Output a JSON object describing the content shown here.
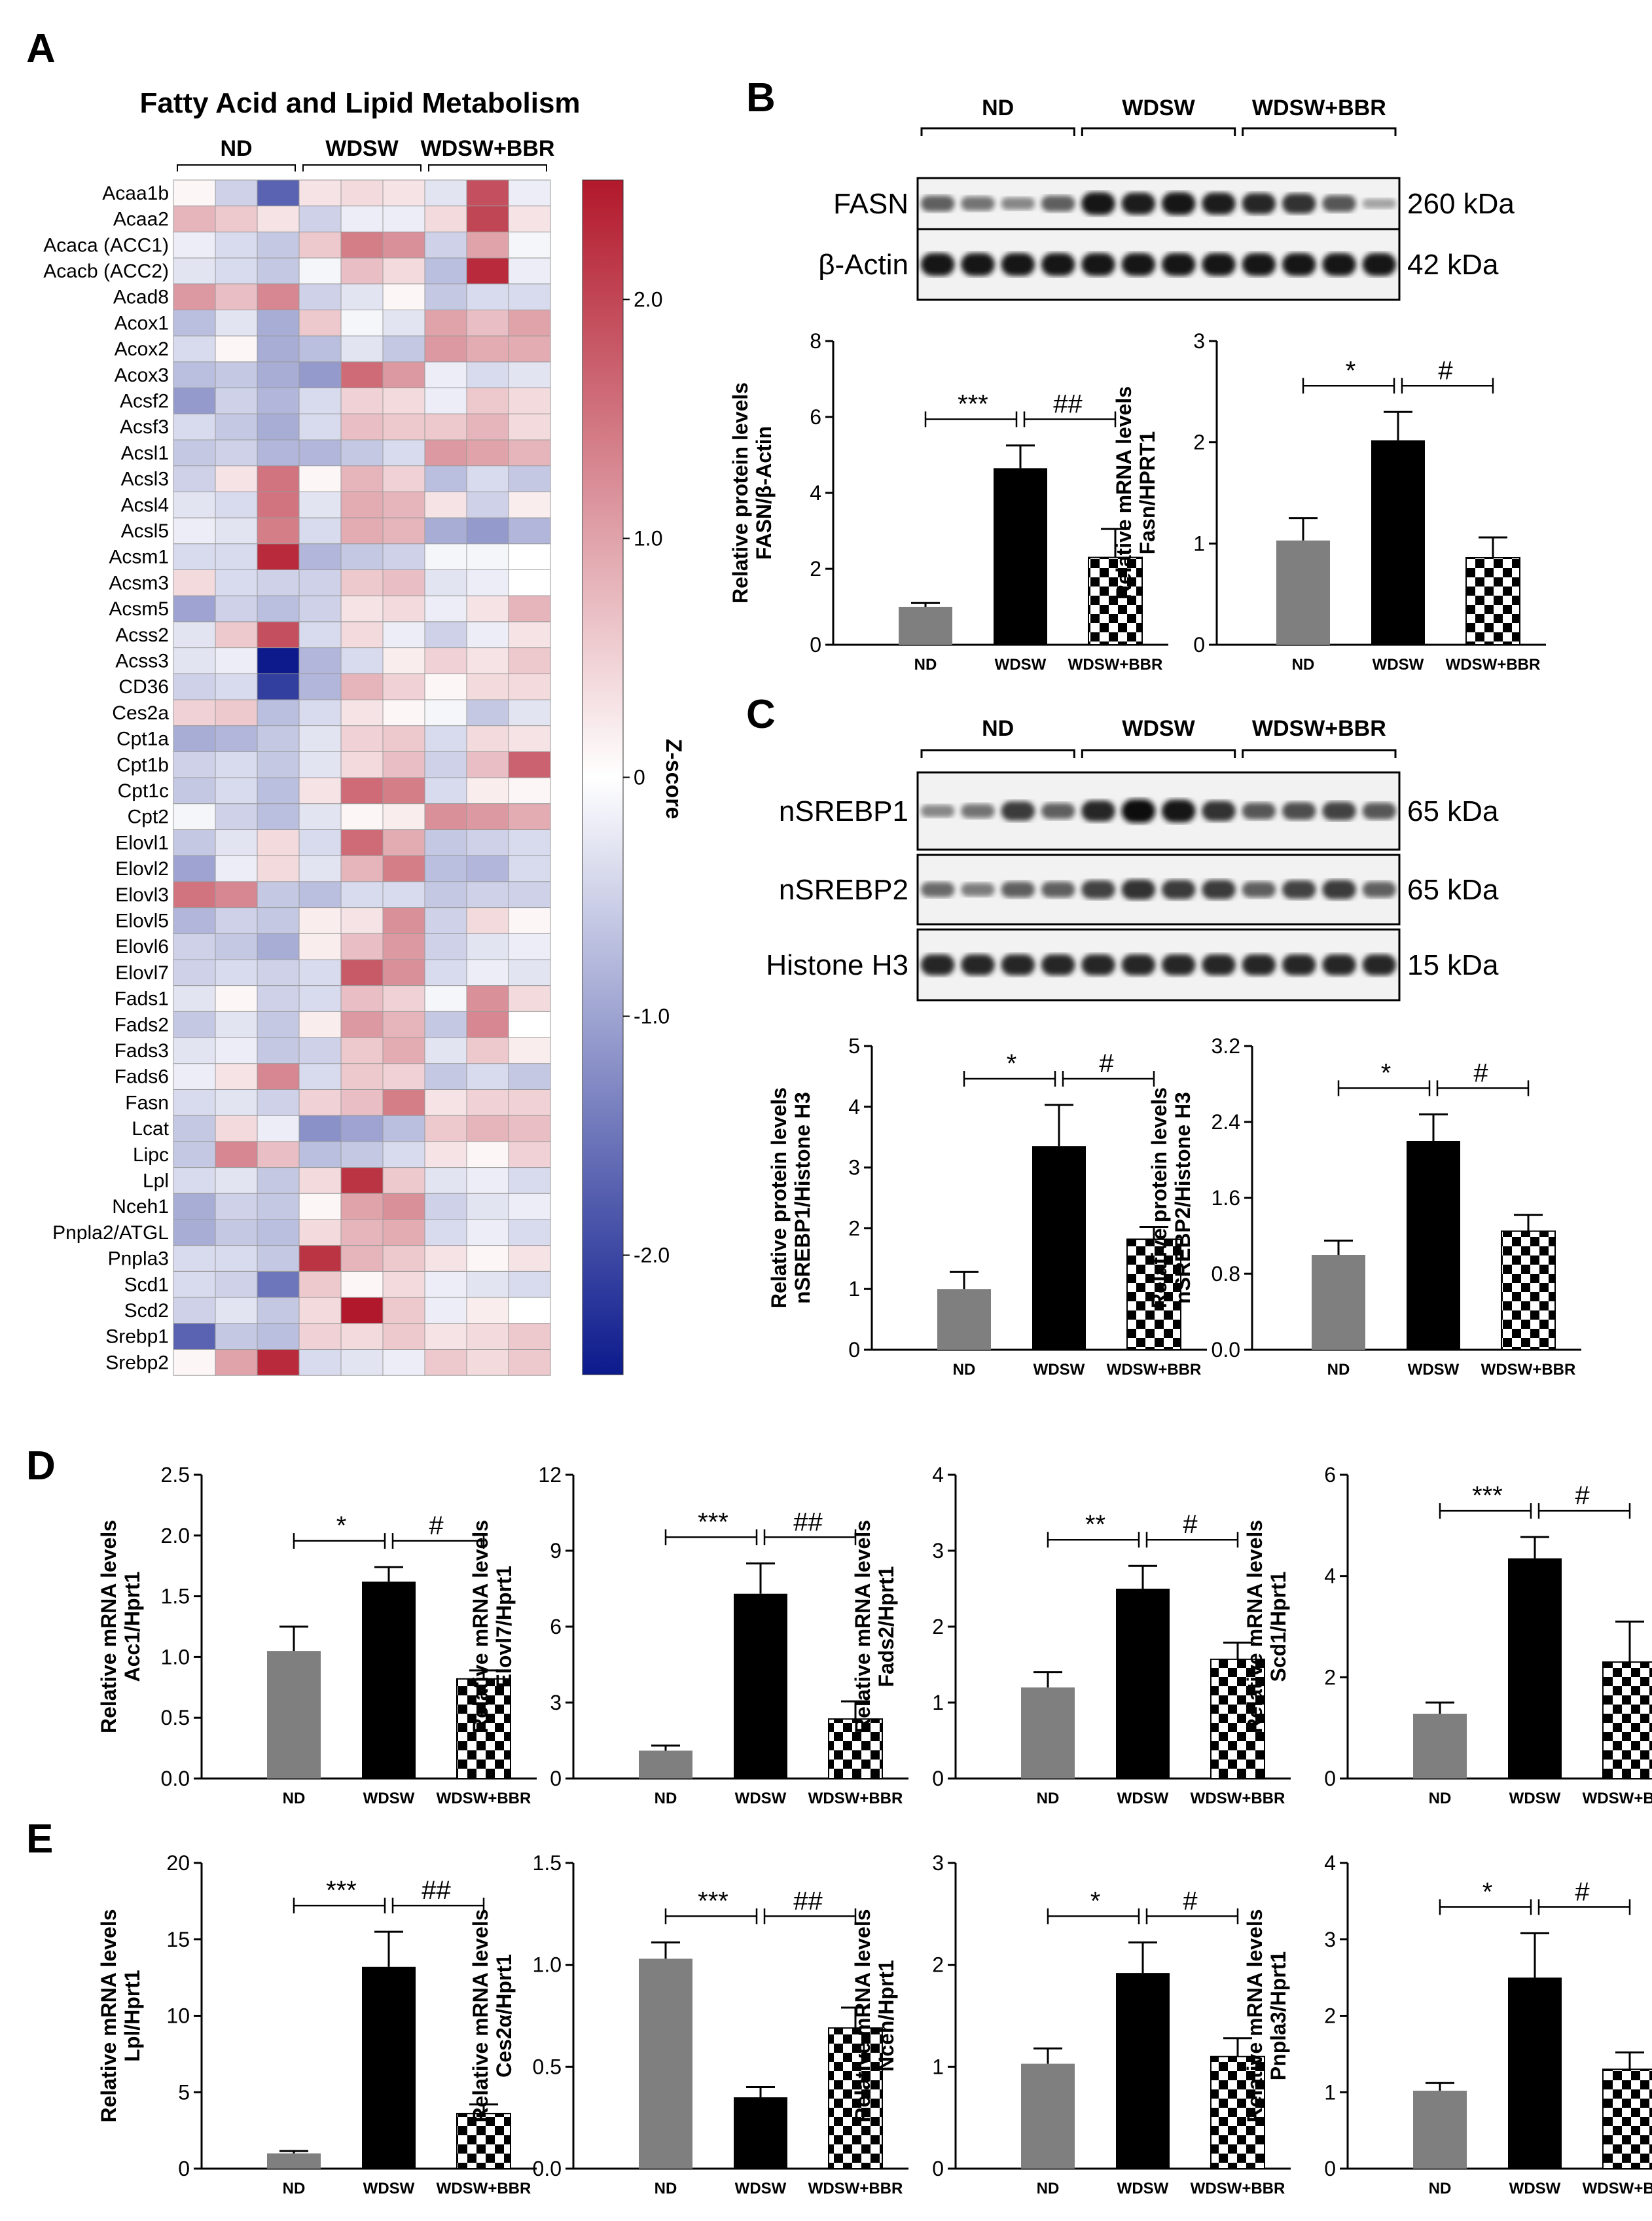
{
  "panels": {
    "A": "A",
    "B": "B",
    "C": "C",
    "D": "D",
    "E": "E"
  },
  "groups": [
    "ND",
    "WDSW",
    "WDSW+BBR"
  ],
  "heatmap": {
    "title": "Fatty Acid and Lipid Metabolism",
    "colorbar_label": "Z-score",
    "colorbar_ticks": [
      "2.0",
      "1.0",
      "0",
      "-1.0",
      "-2.0"
    ],
    "colorbar_values": [
      2.0,
      1.0,
      0,
      -1.0,
      -2.0
    ],
    "colorbar_range": [
      -2.5,
      2.5
    ],
    "colors": {
      "high": "#b2182b",
      "mid": "#ffffff",
      "low": "#0c1a8c"
    },
    "rows": [
      "Acaa1b",
      "Acaa2",
      "Acaca (ACC1)",
      "Acacb (ACC2)",
      "Acad8",
      "Acox1",
      "Acox2",
      "Acox3",
      "Acsf2",
      "Acsf3",
      "Acsl1",
      "Acsl3",
      "Acsl4",
      "Acsl5",
      "Acsm1",
      "Acsm3",
      "Acsm5",
      "Acss2",
      "Acss3",
      "CD36",
      "Ces2a",
      "Cpt1a",
      "Cpt1b",
      "Cpt1c",
      "Cpt2",
      "Elovl1",
      "Elovl2",
      "Elovl3",
      "Elovl5",
      "Elovl6",
      "Elovl7",
      "Fads1",
      "Fads2",
      "Fads3",
      "Fads6",
      "Fasn",
      "Lcat",
      "Lipc",
      "Lpl",
      "Nceh1",
      "Pnpla2/ATGL",
      "Pnpla3",
      "Scd1",
      "Scd2",
      "Srebp1",
      "Srebp2"
    ],
    "values": [
      [
        0.1,
        -0.5,
        -1.7,
        0.3,
        0.4,
        0.3,
        -0.3,
        1.9,
        -0.2
      ],
      [
        0.8,
        0.6,
        0.3,
        -0.5,
        -0.2,
        -0.2,
        0.4,
        2.0,
        0.3
      ],
      [
        -0.2,
        -0.4,
        -0.6,
        0.6,
        1.4,
        1.2,
        -0.5,
        1.0,
        -0.1
      ],
      [
        -0.3,
        -0.4,
        -0.6,
        -0.1,
        0.7,
        0.4,
        -0.7,
        2.3,
        -0.2
      ],
      [
        1.1,
        0.7,
        1.3,
        -0.5,
        -0.3,
        0.1,
        -0.6,
        -0.4,
        -0.4
      ],
      [
        -0.7,
        -0.3,
        -0.9,
        0.6,
        -0.1,
        -0.3,
        1.0,
        0.7,
        1.0
      ],
      [
        -0.4,
        0.1,
        -0.9,
        -0.7,
        -0.3,
        -0.6,
        1.1,
        0.9,
        0.9
      ],
      [
        -0.7,
        -0.6,
        -0.9,
        -1.1,
        1.6,
        1.1,
        -0.2,
        -0.4,
        -0.3
      ],
      [
        -1.1,
        -0.5,
        -0.8,
        -0.4,
        0.5,
        0.4,
        -0.2,
        0.6,
        0.4
      ],
      [
        -0.4,
        -0.6,
        -0.9,
        -0.4,
        0.7,
        0.6,
        0.6,
        0.8,
        0.4
      ],
      [
        -0.6,
        -0.5,
        -0.8,
        -0.8,
        -0.6,
        -0.4,
        1.1,
        1.0,
        0.8
      ],
      [
        -0.5,
        0.3,
        1.5,
        0.1,
        0.8,
        0.5,
        -0.7,
        -0.4,
        -0.6
      ],
      [
        -0.3,
        -0.4,
        1.5,
        -0.3,
        0.9,
        0.8,
        0.3,
        -0.5,
        0.2
      ],
      [
        -0.2,
        -0.3,
        1.4,
        -0.4,
        0.9,
        0.8,
        -0.9,
        -1.1,
        -0.8
      ],
      [
        -0.4,
        -0.4,
        2.3,
        -0.8,
        -0.6,
        -0.5,
        -0.1,
        -0.1,
        0.0
      ],
      [
        0.4,
        -0.4,
        -0.5,
        -0.5,
        0.6,
        0.7,
        -0.3,
        -0.2,
        0.0
      ],
      [
        -1.0,
        -0.5,
        -0.7,
        -0.5,
        0.3,
        0.4,
        -0.2,
        0.3,
        0.8
      ],
      [
        -0.3,
        0.6,
        1.9,
        -0.4,
        0.4,
        -0.2,
        -0.5,
        -0.2,
        0.3
      ],
      [
        -0.3,
        -0.2,
        -2.5,
        -0.8,
        -0.4,
        0.2,
        0.5,
        0.3,
        0.6
      ],
      [
        -0.5,
        -0.4,
        -2.1,
        -0.8,
        0.8,
        0.5,
        0.1,
        0.4,
        0.4
      ],
      [
        0.5,
        0.6,
        -0.7,
        -0.4,
        0.3,
        0.1,
        -0.1,
        -0.6,
        -0.3
      ],
      [
        -0.9,
        -0.8,
        -0.6,
        -0.3,
        0.5,
        0.6,
        -0.4,
        0.4,
        0.3
      ],
      [
        -0.5,
        -0.4,
        -0.6,
        -0.3,
        0.4,
        0.7,
        -0.5,
        0.7,
        1.7
      ],
      [
        -0.6,
        -0.4,
        -0.7,
        0.3,
        1.6,
        1.4,
        -0.4,
        0.2,
        0.1
      ],
      [
        -0.1,
        -0.5,
        -0.7,
        -0.3,
        0.1,
        0.2,
        1.2,
        1.1,
        0.9
      ],
      [
        -0.6,
        -0.3,
        0.4,
        -0.4,
        1.6,
        0.9,
        -0.6,
        -0.5,
        -0.4
      ],
      [
        -1.0,
        -0.2,
        0.4,
        -0.3,
        0.8,
        1.4,
        -0.7,
        -0.8,
        -0.4
      ],
      [
        1.5,
        1.3,
        -0.6,
        -0.7,
        -0.4,
        -0.4,
        -0.6,
        -0.5,
        -0.5
      ],
      [
        -0.8,
        -0.5,
        -0.6,
        0.2,
        0.3,
        1.2,
        -0.5,
        0.4,
        0.1
      ],
      [
        -0.5,
        -0.6,
        -0.9,
        0.2,
        0.7,
        1.1,
        -0.5,
        -0.3,
        -0.2
      ],
      [
        -0.5,
        -0.4,
        -0.5,
        -0.4,
        1.8,
        1.2,
        -0.4,
        -0.2,
        -0.3
      ],
      [
        -0.3,
        0.1,
        -0.5,
        -0.4,
        0.7,
        0.5,
        -0.1,
        1.2,
        0.4
      ],
      [
        -0.6,
        -0.3,
        -0.6,
        0.2,
        1.1,
        0.8,
        -0.6,
        1.3,
        0.0
      ],
      [
        -0.3,
        -0.2,
        -0.6,
        -0.5,
        0.6,
        0.9,
        -0.3,
        0.6,
        0.2
      ],
      [
        -0.2,
        0.3,
        1.3,
        -0.4,
        0.6,
        0.5,
        -0.6,
        -0.4,
        -0.6
      ],
      [
        -0.4,
        -0.3,
        -0.5,
        0.5,
        0.7,
        1.4,
        0.3,
        0.5,
        0.5
      ],
      [
        -0.6,
        0.4,
        -0.2,
        -1.2,
        -1.0,
        -0.7,
        0.6,
        0.8,
        0.7
      ],
      [
        -0.6,
        1.3,
        0.7,
        -0.7,
        -0.6,
        -0.4,
        0.3,
        0.1,
        0.5
      ],
      [
        -0.4,
        -0.3,
        -0.6,
        0.4,
        2.2,
        0.6,
        -0.3,
        -0.2,
        -0.4
      ],
      [
        -0.9,
        -0.5,
        -0.6,
        0.1,
        1.0,
        1.2,
        -0.5,
        -0.3,
        -0.2
      ],
      [
        -0.9,
        -0.6,
        -0.7,
        0.4,
        0.8,
        0.9,
        -0.4,
        -0.2,
        -0.4
      ],
      [
        -0.4,
        -0.4,
        -0.6,
        2.2,
        0.8,
        0.6,
        0.3,
        0.1,
        0.3
      ],
      [
        -0.4,
        -0.5,
        -1.5,
        0.6,
        0.1,
        0.4,
        -0.2,
        -0.3,
        -0.4
      ],
      [
        -0.5,
        -0.3,
        -0.6,
        0.4,
        2.5,
        0.6,
        -0.2,
        0.2,
        0.0
      ],
      [
        -1.7,
        -0.6,
        -0.7,
        0.5,
        0.4,
        0.6,
        0.3,
        0.4,
        0.6
      ],
      [
        0.1,
        1.0,
        2.3,
        -0.4,
        -0.3,
        -0.2,
        0.6,
        0.4,
        0.6
      ]
    ]
  },
  "blots": {
    "B": {
      "bands": [
        {
          "name": "FASN",
          "kda": "260 kDa",
          "intensity": [
            0.55,
            0.45,
            0.35,
            0.55,
            0.95,
            0.9,
            0.95,
            0.9,
            0.85,
            0.8,
            0.6,
            0.2
          ]
        },
        {
          "name": "β-Actin",
          "kda": "42 kDa",
          "intensity": [
            0.95,
            0.95,
            0.95,
            0.95,
            0.95,
            0.95,
            0.95,
            0.95,
            0.95,
            0.95,
            0.95,
            0.95
          ]
        }
      ]
    },
    "C": {
      "bands": [
        {
          "name": "nSREBP1",
          "kda": "65 kDa",
          "intensity": [
            0.35,
            0.45,
            0.75,
            0.55,
            0.85,
            1.0,
            0.95,
            0.8,
            0.6,
            0.65,
            0.7,
            0.6
          ]
        },
        {
          "name": "nSREBP2",
          "kda": "65 kDa",
          "intensity": [
            0.5,
            0.4,
            0.55,
            0.55,
            0.7,
            0.8,
            0.75,
            0.75,
            0.55,
            0.7,
            0.75,
            0.55
          ]
        },
        {
          "name": "Histone H3",
          "kda": "15 kDa",
          "intensity": [
            0.85,
            0.85,
            0.85,
            0.85,
            0.85,
            0.85,
            0.85,
            0.85,
            0.85,
            0.85,
            0.85,
            0.85
          ]
        }
      ]
    }
  },
  "colors": {
    "ND": "#7f7f7f",
    "WDSW": "#000000",
    "WDSW+BBR": "checker"
  },
  "chart_data": [
    {
      "id": "B1",
      "type": "bar",
      "categories": [
        "ND",
        "WDSW",
        "WDSW+BBR"
      ],
      "values": [
        1.0,
        4.65,
        2.3
      ],
      "errors": [
        0.1,
        0.6,
        0.75
      ],
      "ylabel": [
        "Relative protein levels",
        "FASN/β-Actin"
      ],
      "ylim": [
        0,
        8
      ],
      "yticks": [
        "0",
        "2",
        "4",
        "6",
        "8"
      ],
      "sig": [
        "***",
        "##"
      ]
    },
    {
      "id": "B2",
      "type": "bar",
      "categories": [
        "ND",
        "WDSW",
        "WDSW+BBR"
      ],
      "values": [
        1.03,
        2.02,
        0.86
      ],
      "errors": [
        0.22,
        0.28,
        0.2
      ],
      "ylabel": [
        "Relative mRNA levels",
        "Fasn/HPRT1"
      ],
      "ylim": [
        0,
        3
      ],
      "yticks": [
        "0",
        "1",
        "2",
        "3"
      ],
      "sig": [
        "*",
        "#"
      ]
    },
    {
      "id": "C1",
      "type": "bar",
      "categories": [
        "ND",
        "WDSW",
        "WDSW+BBR"
      ],
      "values": [
        1.0,
        3.35,
        1.82
      ],
      "errors": [
        0.28,
        0.68,
        0.2
      ],
      "ylabel": [
        "Relative protein levels",
        "nSREBP1/Histone H3"
      ],
      "ylim": [
        0,
        5
      ],
      "yticks": [
        "0",
        "1",
        "2",
        "3",
        "4",
        "5"
      ],
      "sig": [
        "*",
        "#"
      ]
    },
    {
      "id": "C2",
      "type": "bar",
      "categories": [
        "ND",
        "WDSW",
        "WDSW+BBR"
      ],
      "values": [
        1.0,
        2.2,
        1.25
      ],
      "errors": [
        0.15,
        0.28,
        0.17
      ],
      "ylabel": [
        "Relative protein levels",
        "nSREBP2/Histone H3"
      ],
      "ylim": [
        0,
        3.2
      ],
      "yticks": [
        "0.0",
        "0.8",
        "1.6",
        "2.4",
        "3.2"
      ],
      "sig": [
        "*",
        "#"
      ]
    },
    {
      "id": "D1",
      "type": "bar",
      "categories": [
        "ND",
        "WDSW",
        "WDSW+BBR"
      ],
      "values": [
        1.05,
        1.62,
        0.82
      ],
      "errors": [
        0.2,
        0.12,
        0.07
      ],
      "ylabel": [
        "Relative mRNA levels",
        "Acc1/Hprt1"
      ],
      "ylim": [
        0,
        2.5
      ],
      "yticks": [
        "0.0",
        "0.5",
        "1.0",
        "1.5",
        "2.0",
        "2.5"
      ],
      "sig": [
        "*",
        "#"
      ]
    },
    {
      "id": "D2",
      "type": "bar",
      "categories": [
        "ND",
        "WDSW",
        "WDSW+BBR"
      ],
      "values": [
        1.1,
        7.3,
        2.35
      ],
      "errors": [
        0.2,
        1.2,
        0.7
      ],
      "ylabel": [
        "Relative mRNA levels",
        "Elovl7/Hprt1"
      ],
      "ylim": [
        0,
        12
      ],
      "yticks": [
        "0",
        "3",
        "6",
        "9",
        "12"
      ],
      "sig": [
        "***",
        "##"
      ]
    },
    {
      "id": "D3",
      "type": "bar",
      "categories": [
        "ND",
        "WDSW",
        "WDSW+BBR"
      ],
      "values": [
        1.2,
        2.5,
        1.57
      ],
      "errors": [
        0.2,
        0.3,
        0.22
      ],
      "ylabel": [
        "Relative mRNA levels",
        "Fads2/Hprt1"
      ],
      "ylim": [
        0,
        4
      ],
      "yticks": [
        "0",
        "1",
        "2",
        "3",
        "4"
      ],
      "sig": [
        "**",
        "#"
      ]
    },
    {
      "id": "D4",
      "type": "bar",
      "categories": [
        "ND",
        "WDSW",
        "WDSW+BBR"
      ],
      "values": [
        1.28,
        4.35,
        2.3
      ],
      "errors": [
        0.22,
        0.42,
        0.8
      ],
      "ylabel": [
        "Relative mRNA levels",
        "Scd1/Hprt1"
      ],
      "ylim": [
        0,
        6
      ],
      "yticks": [
        "0",
        "2",
        "4",
        "6"
      ],
      "sig": [
        "***",
        "#"
      ]
    },
    {
      "id": "E1",
      "type": "bar",
      "categories": [
        "ND",
        "WDSW",
        "WDSW+BBR"
      ],
      "values": [
        1.0,
        13.2,
        3.6
      ],
      "errors": [
        0.15,
        2.3,
        0.6
      ],
      "ylabel": [
        "Relative mRNA levels",
        "Lpl/Hprt1"
      ],
      "ylim": [
        0,
        20
      ],
      "yticks": [
        "0",
        "5",
        "10",
        "15",
        "20"
      ],
      "sig": [
        "***",
        "##"
      ]
    },
    {
      "id": "E2",
      "type": "bar",
      "categories": [
        "ND",
        "WDSW",
        "WDSW+BBR"
      ],
      "values": [
        1.03,
        0.35,
        0.69
      ],
      "errors": [
        0.08,
        0.05,
        0.1
      ],
      "ylabel": [
        "Relative mRNA levels",
        "Ces2α/Hprt1"
      ],
      "ylim": [
        0,
        1.5
      ],
      "yticks": [
        "0.0",
        "0.5",
        "1.0",
        "1.5"
      ],
      "sig": [
        "***",
        "##"
      ]
    },
    {
      "id": "E3",
      "type": "bar",
      "categories": [
        "ND",
        "WDSW",
        "WDSW+BBR"
      ],
      "values": [
        1.03,
        1.92,
        1.1
      ],
      "errors": [
        0.15,
        0.3,
        0.18
      ],
      "ylabel": [
        "Relative mRNA levels",
        "Nceh/Hprt1"
      ],
      "ylim": [
        0,
        3
      ],
      "yticks": [
        "0",
        "1",
        "2",
        "3"
      ],
      "sig": [
        "*",
        "#"
      ]
    },
    {
      "id": "E4",
      "type": "bar",
      "categories": [
        "ND",
        "WDSW",
        "WDSW+BBR"
      ],
      "values": [
        1.02,
        2.5,
        1.3
      ],
      "errors": [
        0.1,
        0.58,
        0.22
      ],
      "ylabel": [
        "Relative mRNA levels",
        "Pnpla3/Hprt1"
      ],
      "ylim": [
        0,
        4
      ],
      "yticks": [
        "0",
        "1",
        "2",
        "3",
        "4"
      ],
      "sig": [
        "*",
        "#"
      ]
    }
  ]
}
